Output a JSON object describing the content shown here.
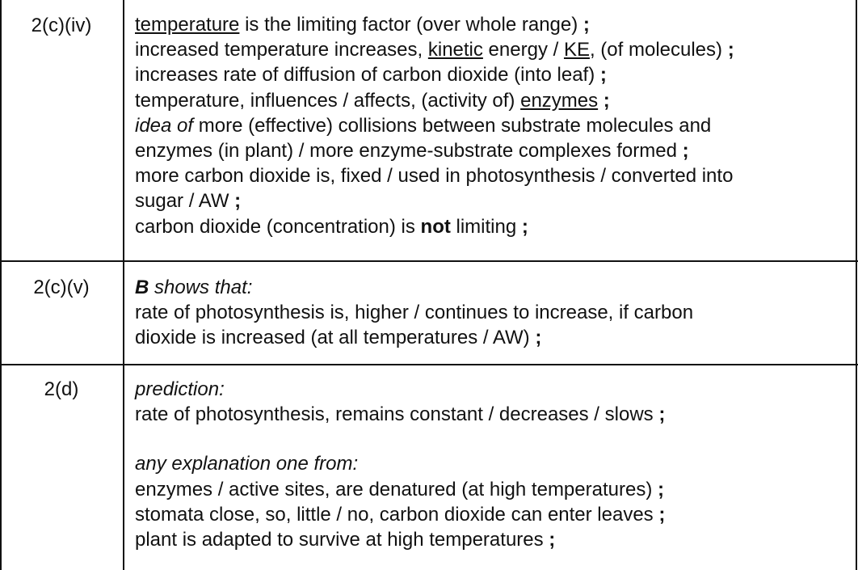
{
  "rows": [
    {
      "question": "2(c)(iv)",
      "lines": [
        {
          "u": "temperature",
          "t": " is the limiting factor (over whole range) ",
          "s": ";"
        },
        {
          "a": "increased temperature increases, ",
          "u": "kinetic",
          "b": " energy / ",
          "u2": "KE",
          "c": ", (of molecules) ",
          "s": ";"
        },
        {
          "t": "increases rate of diffusion of carbon dioxide (into leaf) ",
          "s": ";"
        },
        {
          "a": "temperature, influences / affects, (activity of) ",
          "u": "enzymes",
          "s": " ;"
        },
        {
          "i": "idea of",
          "t": " more (effective) collisions between substrate molecules and"
        },
        {
          "t": "enzymes (in plant) / more enzyme-substrate complexes formed ",
          "s": ";"
        },
        {
          "t": "more carbon dioxide is, fixed / used in photosynthesis / converted into"
        },
        {
          "t": "sugar / AW ",
          "s": ";"
        },
        {
          "a": "carbon dioxide (concentration) is ",
          "b": "not",
          "c": " limiting ",
          "s": ";"
        }
      ]
    },
    {
      "question": "2(c)(v)",
      "lead_bold": "B",
      "lead_italic": " shows that:",
      "lines": [
        {
          "t": "rate of photosynthesis is, higher / continues to increase, if carbon"
        },
        {
          "t": "dioxide is increased (at all temperatures / AW) ",
          "s": ";"
        }
      ]
    },
    {
      "question": "2(d)",
      "prediction_label": "prediction:",
      "prediction": {
        "t": "rate of photosynthesis, remains constant / decreases / slows ",
        "s": ";"
      },
      "explanation_label": "any explanation one from:",
      "lines": [
        {
          "t": "enzymes / active sites, are denatured (at high temperatures) ",
          "s": ";"
        },
        {
          "t": "stomata close, so, little / no, carbon dioxide can enter leaves ",
          "s": ";"
        },
        {
          "t": "plant is adapted to survive at high temperatures ",
          "s": ";"
        }
      ]
    }
  ]
}
